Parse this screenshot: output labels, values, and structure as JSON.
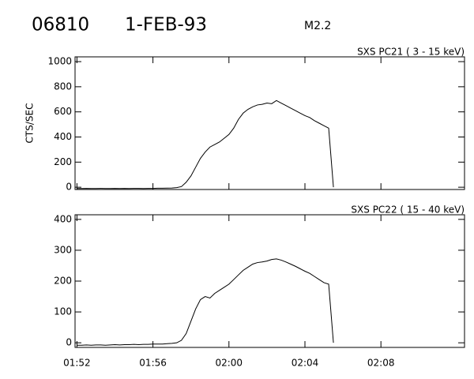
{
  "header": {
    "id": "06810",
    "date": "1-FEB-93",
    "class": "M2.2"
  },
  "chart_data": [
    {
      "type": "line",
      "title": "SXS PC21  (  3 - 15 keV)",
      "y_label": "CTS/SEC",
      "color": "#000000",
      "x": [
        112,
        112.25,
        112.5,
        112.75,
        113,
        113.25,
        113.5,
        113.75,
        114,
        114.25,
        114.5,
        114.75,
        115,
        115.25,
        115.5,
        115.75,
        116,
        116.25,
        116.5,
        116.75,
        117,
        117.25,
        117.5,
        117.75,
        118,
        118.25,
        118.5,
        118.75,
        119,
        119.25,
        119.5,
        119.75,
        120,
        120.25,
        120.5,
        120.75,
        121,
        121.25,
        121.5,
        121.75,
        122,
        122.25,
        122.5,
        122.75,
        123,
        123.25,
        123.5,
        123.75,
        124,
        124.25,
        124.5,
        124.75,
        125,
        125.25,
        125.5
      ],
      "values": [
        -10,
        -10,
        -9,
        -10,
        -10,
        -9,
        -10,
        -10,
        -9,
        -10,
        -9,
        -10,
        -9,
        -9,
        -10,
        -9,
        -9,
        -8,
        -8,
        -7,
        -6,
        -3,
        5,
        40,
        90,
        160,
        230,
        280,
        320,
        340,
        360,
        390,
        420,
        470,
        540,
        590,
        620,
        640,
        655,
        660,
        670,
        665,
        690,
        670,
        650,
        630,
        610,
        590,
        570,
        555,
        530,
        510,
        490,
        470,
        0
      ],
      "xlim": [
        111.9,
        132.4
      ],
      "ylim": [
        -18,
        1038
      ],
      "xticks": [
        {
          "value": 112,
          "label": "01:52"
        },
        {
          "value": 116,
          "label": "01:56"
        },
        {
          "value": 120,
          "label": "02:00"
        },
        {
          "value": 124,
          "label": "02:04"
        },
        {
          "value": 128,
          "label": "02:08"
        }
      ],
      "yticks": [
        0,
        200,
        400,
        600,
        800,
        1000
      ],
      "show_xtick_labels": false
    },
    {
      "type": "line",
      "title": "SXS PC22  ( 15 - 40 keV)",
      "color": "#000000",
      "x": [
        112,
        112.25,
        112.5,
        112.75,
        113,
        113.25,
        113.5,
        113.75,
        114,
        114.25,
        114.5,
        114.75,
        115,
        115.25,
        115.5,
        115.75,
        116,
        116.25,
        116.5,
        116.75,
        117,
        117.25,
        117.5,
        117.75,
        118,
        118.25,
        118.5,
        118.75,
        119,
        119.25,
        119.5,
        119.75,
        120,
        120.25,
        120.5,
        120.75,
        121,
        121.25,
        121.5,
        121.75,
        122,
        122.25,
        122.5,
        122.75,
        123,
        123.25,
        123.5,
        123.75,
        124,
        124.25,
        124.5,
        124.75,
        125,
        125.25,
        125.5
      ],
      "values": [
        -8,
        -8,
        -7,
        -8,
        -7,
        -7,
        -8,
        -7,
        -6,
        -7,
        -6,
        -6,
        -5,
        -6,
        -5,
        -5,
        -4,
        -4,
        -4,
        -3,
        -2,
        0,
        8,
        30,
        70,
        110,
        140,
        150,
        145,
        160,
        170,
        180,
        190,
        205,
        220,
        235,
        245,
        255,
        260,
        262,
        265,
        270,
        272,
        268,
        262,
        255,
        248,
        240,
        232,
        225,
        215,
        205,
        195,
        190,
        0
      ],
      "xlim": [
        111.9,
        132.4
      ],
      "ylim": [
        -15,
        415
      ],
      "xticks": [
        {
          "value": 112,
          "label": "01:52"
        },
        {
          "value": 116,
          "label": "01:56"
        },
        {
          "value": 120,
          "label": "02:00"
        },
        {
          "value": 124,
          "label": "02:04"
        },
        {
          "value": 128,
          "label": "02:08"
        }
      ],
      "yticks": [
        0,
        100,
        200,
        300,
        400
      ],
      "show_xtick_labels": true
    }
  ]
}
